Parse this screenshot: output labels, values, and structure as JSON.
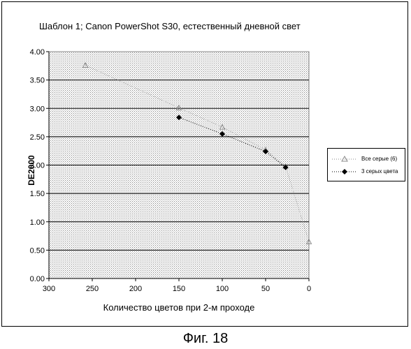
{
  "chart_data": {
    "type": "line",
    "title": "Шаблон 1; Canon PowerShot S30, естественный дневной свет",
    "xlabel": "Количество цветов при 2-м проходе",
    "ylabel": "DE2000",
    "xlim": [
      300,
      0
    ],
    "ylim": [
      0,
      4
    ],
    "x_ticks": [
      "300",
      "250",
      "200",
      "150",
      "100",
      "50",
      "0"
    ],
    "y_ticks": [
      "0.00",
      "0.50",
      "1.00",
      "1.50",
      "2.00",
      "2.50",
      "3.00",
      "3.50",
      "4.00"
    ],
    "grid": true,
    "legend_position": "right",
    "series": [
      {
        "name": "Все серые (6)",
        "color": "#888888",
        "marker": "triangle-open",
        "line": "dotted",
        "x": [
          258,
          150,
          100,
          50,
          27,
          0
        ],
        "y": [
          3.76,
          3.01,
          2.67,
          2.27,
          1.98,
          0.65
        ]
      },
      {
        "name": "3 серых цвета",
        "color": "#000000",
        "marker": "diamond",
        "line": "dotted",
        "x": [
          150,
          100,
          50,
          27
        ],
        "y": [
          2.84,
          2.55,
          2.24,
          1.96
        ]
      }
    ]
  },
  "caption": "Фиг. 18"
}
